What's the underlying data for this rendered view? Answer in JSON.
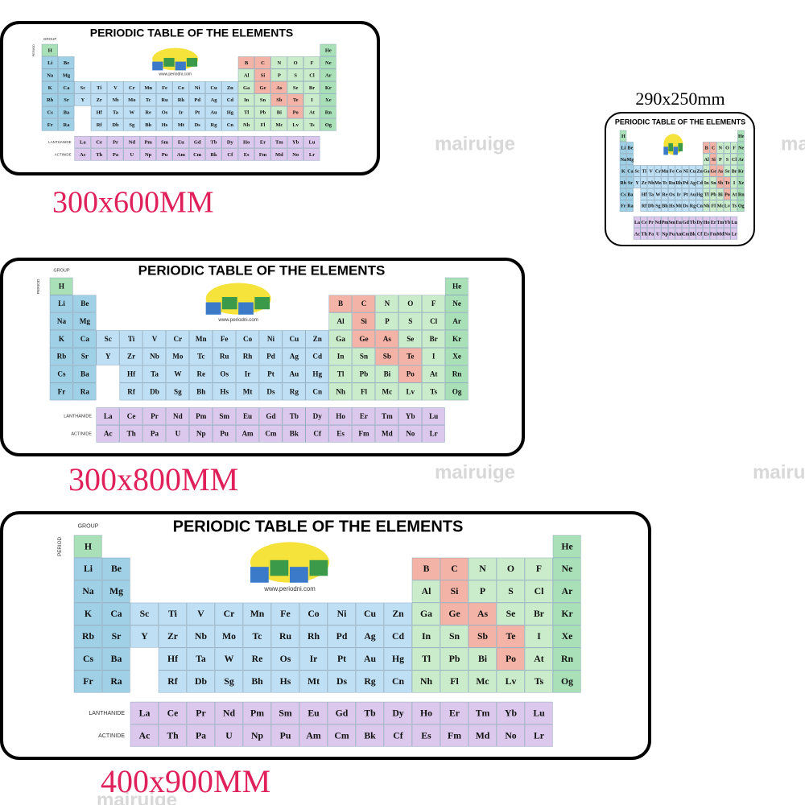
{
  "mats": [
    {
      "title": "PERIODIC TABLE OF THE ELEMENTS",
      "size_label": "300x600MM"
    },
    {
      "title": "PERIODIC TABLE OF THE ELEMENTS",
      "size_label": "290x250mm"
    },
    {
      "title": "PERIODIC TABLE OF THE ELEMENTS",
      "size_label": "300x800MM"
    },
    {
      "title": "PERIODIC TABLE OF THE ELEMENTS",
      "size_label": "400x900MM"
    }
  ],
  "group_label": "GROUP",
  "period_label": "PERIOD",
  "lanthanide_label": "LANTHANIDE",
  "actinide_label": "ACTINIDE",
  "website": "www.periodni.com",
  "watermark": "mairuige",
  "elements": [
    "H",
    "He",
    "Li",
    "Be",
    "B",
    "C",
    "N",
    "O",
    "F",
    "Ne",
    "Na",
    "Mg",
    "Al",
    "Si",
    "P",
    "S",
    "Cl",
    "Ar",
    "K",
    "Ca",
    "Sc",
    "Ti",
    "V",
    "Cr",
    "Mn",
    "Fe",
    "Co",
    "Ni",
    "Cu",
    "Zn",
    "Ga",
    "Ge",
    "As",
    "Se",
    "Br",
    "Kr",
    "Rb",
    "Sr",
    "Y",
    "Zr",
    "Nb",
    "Mo",
    "Tc",
    "Ru",
    "Rh",
    "Pd",
    "Ag",
    "Cd",
    "In",
    "Sn",
    "Sb",
    "Te",
    "I",
    "Xe",
    "Cs",
    "Ba",
    "La",
    "Ce",
    "Pr",
    "Nd",
    "Pm",
    "Sm",
    "Eu",
    "Gd",
    "Tb",
    "Dy",
    "Ho",
    "Er",
    "Tm",
    "Yb",
    "Lu",
    "Hf",
    "Ta",
    "W",
    "Re",
    "Os",
    "Ir",
    "Pt",
    "Au",
    "Hg",
    "Tl",
    "Pb",
    "Bi",
    "Po",
    "At",
    "Rn",
    "Fr",
    "Ra",
    "Ac",
    "Th",
    "Pa",
    "U",
    "Np",
    "Pu",
    "Am",
    "Cm",
    "Bk",
    "Cf",
    "Es",
    "Fm",
    "Md",
    "No",
    "Lr",
    "Rf",
    "Db",
    "Sg",
    "Bh",
    "Hs",
    "Mt",
    "Ds",
    "Rg",
    "Cn",
    "Nh",
    "Fl",
    "Mc",
    "Lv",
    "Ts",
    "Og"
  ]
}
